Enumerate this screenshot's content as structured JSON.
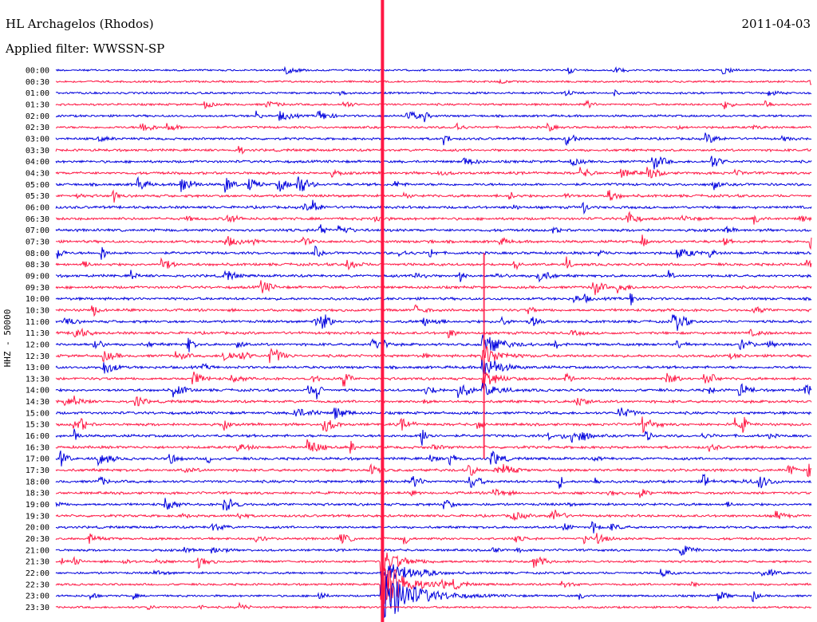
{
  "header": {
    "station": "HL Archagelos (Rhodos)",
    "date": "2011-04-03",
    "filter": "Applied filter: WWSSN-SP"
  },
  "chart_data": {
    "type": "line",
    "subtype": "helicorder",
    "title": "HL Archagelos (Rhodos)",
    "date": "2011-04-03",
    "filter": "WWSSN-SP",
    "ylabel": "HHZ - 50000",
    "row_interval_minutes": 30,
    "rows": [
      "00:00",
      "00:30",
      "01:00",
      "01:30",
      "02:00",
      "02:30",
      "03:00",
      "03:30",
      "04:00",
      "04:30",
      "05:00",
      "05:30",
      "06:00",
      "06:30",
      "07:00",
      "07:30",
      "08:00",
      "08:30",
      "09:00",
      "09:30",
      "10:00",
      "10:30",
      "11:00",
      "11:30",
      "12:00",
      "12:30",
      "13:00",
      "13:30",
      "14:00",
      "14:30",
      "15:00",
      "15:30",
      "16:00",
      "16:30",
      "17:00",
      "17:30",
      "18:00",
      "18:30",
      "19:00",
      "19:30",
      "20:00",
      "20:30",
      "21:00",
      "21:30",
      "22:00",
      "22:30",
      "23:00",
      "23:30"
    ],
    "colors": {
      "even_rows": "#0000dd",
      "odd_rows": "#ff1744",
      "event_line": "#ff1744"
    },
    "events": [
      {
        "row": "21:30",
        "minute": 13,
        "description": "large earthquake"
      },
      {
        "row": "12:00",
        "minute": 17,
        "description": "earthquake"
      }
    ]
  }
}
